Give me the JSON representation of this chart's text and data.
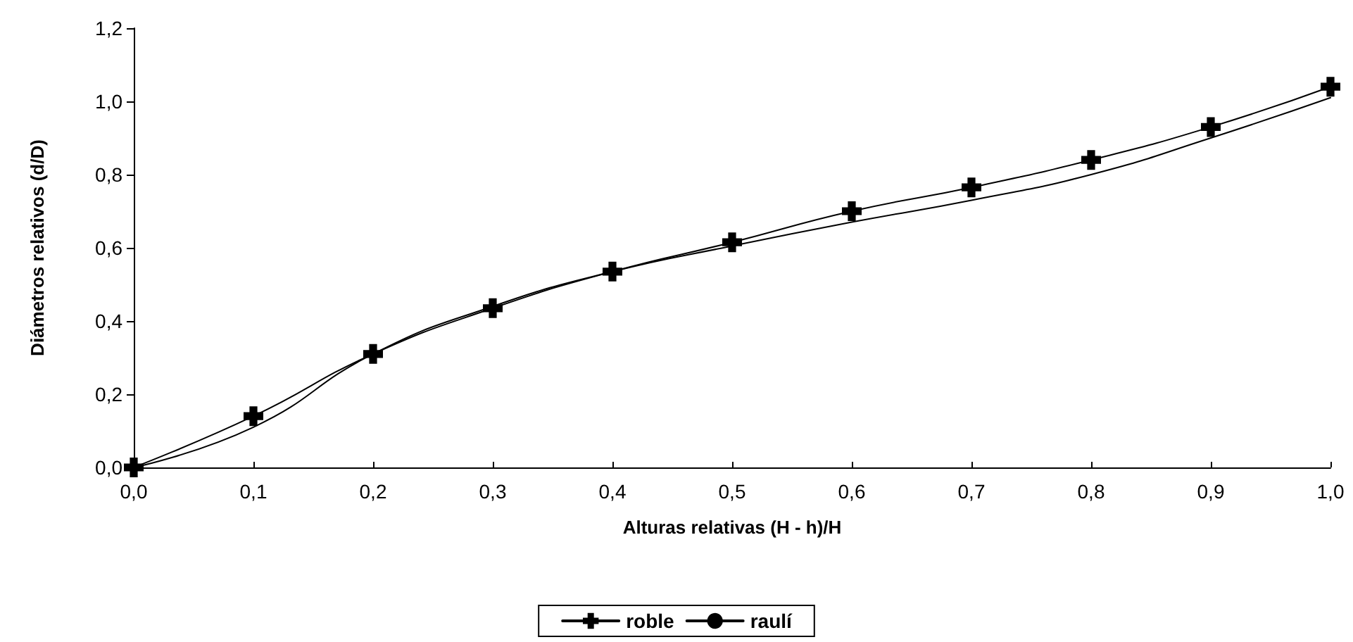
{
  "chart_data": {
    "type": "line",
    "xlabel": "Alturas relativas (H - h)/H",
    "ylabel": "Diámetros relativos (d/D)",
    "x": [
      0,
      0.1,
      0.2,
      0.3,
      0.4,
      0.5,
      0.6,
      0.7,
      0.8,
      0.9,
      1.0
    ],
    "series": [
      {
        "name": "roble",
        "color": "#000000",
        "marker": "cross",
        "values": [
          0,
          0.14,
          0.31,
          0.435,
          0.535,
          0.615,
          0.7,
          0.765,
          0.84,
          0.93,
          1.04
        ]
      },
      {
        "name": "raulí",
        "color": "#000000",
        "marker": "none",
        "values": [
          0,
          0.11,
          0.31,
          0.44,
          0.535,
          0.605,
          0.67,
          0.73,
          0.8,
          0.9,
          1.01
        ]
      }
    ],
    "xlim": [
      0,
      1
    ],
    "xticks": [
      {
        "value": 0,
        "label": "0,0"
      },
      {
        "value": 0.1,
        "label": "0,1"
      },
      {
        "value": 0.2,
        "label": "0,2"
      },
      {
        "value": 0.3,
        "label": "0,3"
      },
      {
        "value": 0.4,
        "label": "0,4"
      },
      {
        "value": 0.5,
        "label": "0,5"
      },
      {
        "value": 0.6,
        "label": "0,6"
      },
      {
        "value": 0.7,
        "label": "0,7"
      },
      {
        "value": 0.8,
        "label": "0,8"
      },
      {
        "value": 0.9,
        "label": "0,9"
      },
      {
        "value": 1,
        "label": "1,0"
      }
    ],
    "ylim": [
      0,
      1.2
    ],
    "yticks": [
      {
        "value": 0,
        "label": "0,0"
      },
      {
        "value": 0.2,
        "label": "0,2"
      },
      {
        "value": 0.4,
        "label": "0,4"
      },
      {
        "value": 0.6,
        "label": "0,6"
      },
      {
        "value": 0.8,
        "label": "0,8"
      },
      {
        "value": 1,
        "label": "1,0"
      },
      {
        "value": 1.2,
        "label": "1,2"
      }
    ],
    "grid": false,
    "legend": "bottom",
    "line_style": "solid"
  }
}
